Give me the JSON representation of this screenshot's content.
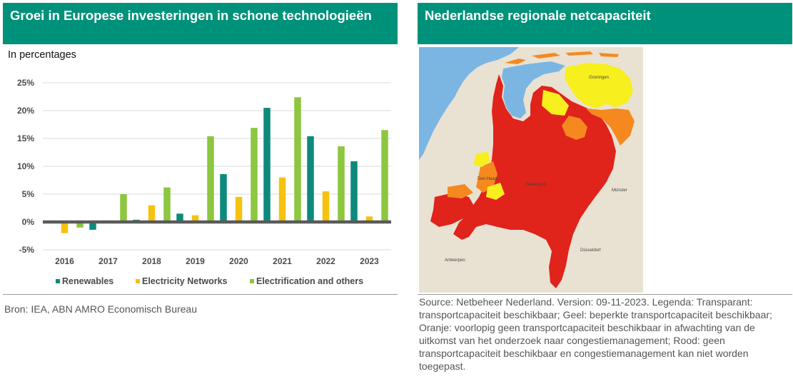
{
  "left_panel": {
    "title": "Groei in Europese investeringen in schone technologieën",
    "unit": "In percentages",
    "source": "Bron: IEA, ABN AMRO Economisch Bureau"
  },
  "right_panel": {
    "title": "Nederlandse regionale netcapaciteit",
    "source": "Source: Netbeheer Nederland. Version: 09-11-2023. Legenda: Transparant: transportcapaciteit beschikbaar; Geel: beperkte transportcapaciteit beschikbaar; Oranje: voorlopig geen transportcapaciteit beschikbaar in afwachting van de uitkomst van het onderzoek naar congestiemanagement; Rood: geen transportcapaciteit beschikbaar en congestiemanagement kan niet worden toegepast.",
    "map_colors": {
      "sea": "#7bb6e3",
      "land": "#e9e2d3",
      "red": "#e0231b",
      "orange": "#f5891f",
      "yellow": "#f7ef1e"
    }
  },
  "chart_data": {
    "type": "bar",
    "categories": [
      "2016",
      "2017",
      "2018",
      "2019",
      "2020",
      "2021",
      "2022",
      "2023"
    ],
    "series": [
      {
        "name": "Renewables",
        "color": "#0d8a7c",
        "values": [
          0.0,
          -1.4,
          0.4,
          1.5,
          8.6,
          20.5,
          15.4,
          10.9
        ]
      },
      {
        "name": "Electricity Networks",
        "color": "#f5c20f",
        "values": [
          -2.0,
          0.1,
          3.0,
          1.2,
          4.5,
          8.0,
          5.5,
          1.0
        ]
      },
      {
        "name": "Electrification and others",
        "color": "#8dc63f",
        "values": [
          -1.0,
          5.0,
          6.2,
          15.4,
          16.9,
          22.4,
          13.6,
          16.5
        ]
      }
    ],
    "ylim": [
      -5,
      25
    ],
    "yticks": [
      -5,
      0,
      5,
      10,
      15,
      20,
      25
    ],
    "ytick_labels": [
      "-5%",
      "0%",
      "5%",
      "10%",
      "15%",
      "20%",
      "25%"
    ],
    "grid": true,
    "legend_position": "bottom"
  }
}
